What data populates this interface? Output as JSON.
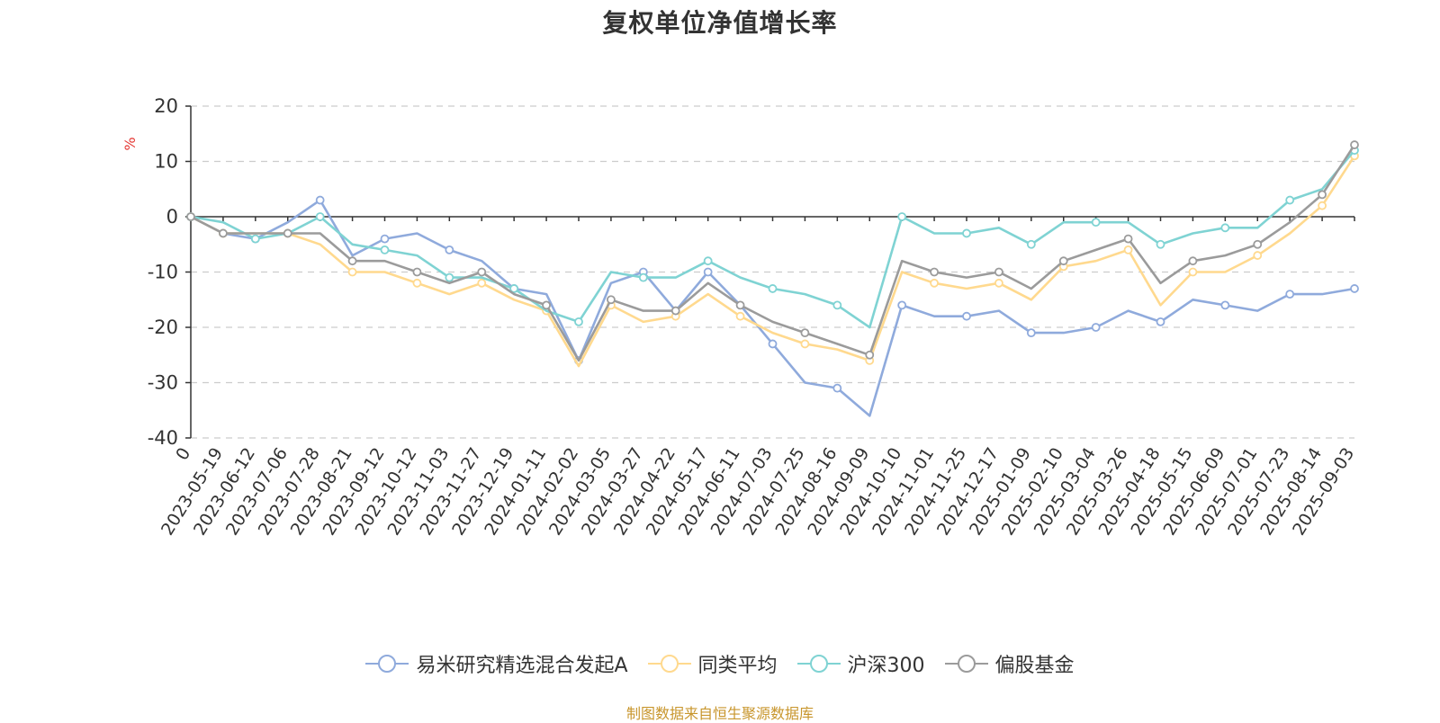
{
  "title": "复权单位净值增长率",
  "source": "制图数据来自恒生聚源数据库",
  "colors": {
    "fund": "#8faadc",
    "peer": "#ffd98e",
    "hs300": "#7fd3d3",
    "equity": "#9b9b9b",
    "axis": "#333333",
    "grid": "#cccccc",
    "ylabel": "#e53935",
    "source": "#c8962d"
  },
  "chart_data": {
    "type": "line",
    "title": "复权单位净值增长率",
    "ylabel": "%",
    "ylim": [
      -40,
      20
    ],
    "yticks": [
      20,
      10,
      0,
      -10,
      -20,
      -30,
      -40
    ],
    "grid": true,
    "legend_position": "bottom",
    "categories": [
      "0",
      "2023-05-19",
      "2023-06-12",
      "2023-07-06",
      "2023-07-28",
      "2023-08-21",
      "2023-09-12",
      "2023-10-12",
      "2023-11-03",
      "2023-11-27",
      "2023-12-19",
      "2024-01-11",
      "2024-02-02",
      "2024-03-05",
      "2024-03-27",
      "2024-04-22",
      "2024-05-17",
      "2024-06-11",
      "2024-07-03",
      "2024-07-25",
      "2024-08-16",
      "2024-09-09",
      "2024-10-10",
      "2024-11-01",
      "2024-11-25",
      "2024-12-17",
      "2025-01-09",
      "2025-02-10",
      "2025-03-04",
      "2025-03-26",
      "2025-04-18",
      "2025-05-15",
      "2025-06-09",
      "2025-07-01",
      "2025-07-23",
      "2025-08-14",
      "2025-09-03"
    ],
    "series": [
      {
        "name": "易米研究精选混合发起A",
        "color_key": "fund",
        "values": [
          0,
          -3,
          -4,
          -1,
          3,
          -7,
          -4,
          -3,
          -6,
          -8,
          -13,
          -14,
          -26,
          -12,
          -10,
          -17,
          -10,
          -16,
          -23,
          -30,
          -31,
          -36,
          -16,
          -18,
          -18,
          -17,
          -21,
          -21,
          -20,
          -17,
          -19,
          -15,
          -16,
          -17,
          -14,
          -14,
          -13
        ]
      },
      {
        "name": "同类平均",
        "color_key": "peer",
        "values": [
          0,
          -3,
          -3,
          -3,
          -5,
          -10,
          -10,
          -12,
          -14,
          -12,
          -15,
          -17,
          -27,
          -16,
          -19,
          -18,
          -14,
          -18,
          -21,
          -23,
          -24,
          -26,
          -10,
          -12,
          -13,
          -12,
          -15,
          -9,
          -8,
          -6,
          -16,
          -10,
          -10,
          -7,
          -3,
          2,
          11
        ]
      },
      {
        "name": "沪深300",
        "color_key": "hs300",
        "values": [
          0,
          -1,
          -4,
          -3,
          0,
          -5,
          -6,
          -7,
          -11,
          -11,
          -13,
          -17,
          -19,
          -10,
          -11,
          -11,
          -8,
          -11,
          -13,
          -14,
          -16,
          -20,
          0,
          -3,
          -3,
          -2,
          -5,
          -1,
          -1,
          -1,
          -5,
          -3,
          -2,
          -2,
          3,
          5,
          12
        ]
      },
      {
        "name": "偏股基金",
        "color_key": "equity",
        "values": [
          0,
          -3,
          -3,
          -3,
          -3,
          -8,
          -8,
          -10,
          -12,
          -10,
          -14,
          -16,
          -26,
          -15,
          -17,
          -17,
          -12,
          -16,
          -19,
          -21,
          -23,
          -25,
          -8,
          -10,
          -11,
          -10,
          -13,
          -8,
          -6,
          -4,
          -12,
          -8,
          -7,
          -5,
          -1,
          4,
          13
        ]
      }
    ]
  }
}
